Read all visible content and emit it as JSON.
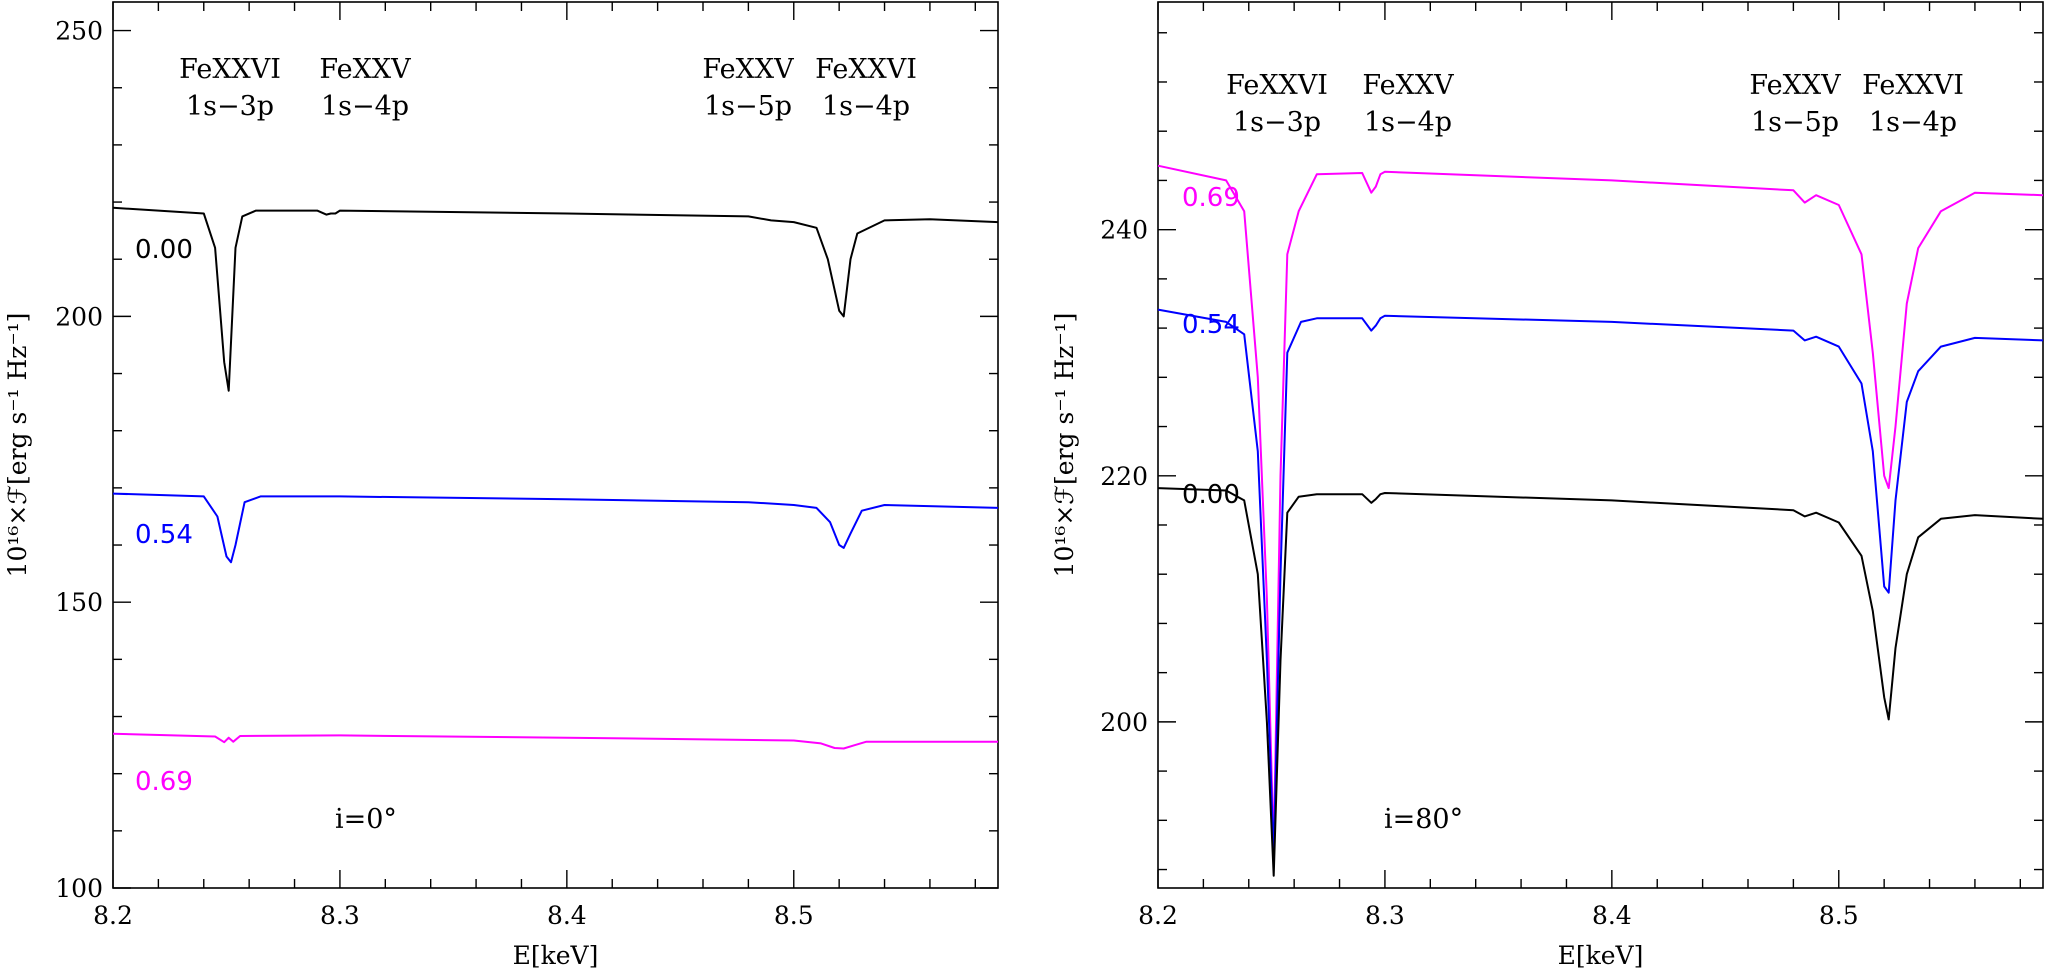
{
  "chart_data": [
    {
      "type": "line",
      "panel": "left",
      "xlabel": "E[keV]",
      "ylabel": "10¹⁶×ℱ[erg s⁻¹ Hz⁻¹]",
      "xlim": [
        8.2,
        8.59
      ],
      "ylim": [
        100,
        255
      ],
      "xticks": [
        8.2,
        8.3,
        8.4,
        8.5
      ],
      "xtick_labels": [
        "8.2",
        "8.3",
        "8.4",
        "8.5"
      ],
      "yticks": [
        100,
        150,
        200,
        250
      ],
      "ytick_labels": [
        "100",
        "150",
        "200",
        "250"
      ],
      "inclination_label": "i=0°",
      "line_labels": [
        {
          "ion": "FeXXVI",
          "transition": "1s−3p",
          "energy": 8.251
        },
        {
          "ion": "FeXXV",
          "transition": "1s−4p",
          "energy": 8.295
        },
        {
          "ion": "FeXXV",
          "transition": "1s−5p",
          "energy": 8.487
        },
        {
          "ion": "FeXXVI",
          "transition": "1s−4p",
          "energy": 8.521
        }
      ],
      "series": [
        {
          "name": "0.00",
          "color": "#000000",
          "x": [
            8.2,
            8.24,
            8.245,
            8.249,
            8.251,
            8.254,
            8.257,
            8.263,
            8.29,
            8.294,
            8.296,
            8.298,
            8.3,
            8.4,
            8.48,
            8.49,
            8.5,
            8.51,
            8.515,
            8.52,
            8.522,
            8.525,
            8.528,
            8.54,
            8.56,
            8.59
          ],
          "y": [
            219,
            218,
            212,
            192,
            187,
            212,
            217.5,
            218.5,
            218.5,
            217.8,
            218,
            218,
            218.5,
            218,
            217.5,
            216.8,
            216.5,
            215.5,
            210,
            201,
            200,
            210,
            214.5,
            216.8,
            217,
            216.5
          ]
        },
        {
          "name": "0.54",
          "color": "#0000ff",
          "x": [
            8.2,
            8.24,
            8.246,
            8.25,
            8.252,
            8.254,
            8.258,
            8.265,
            8.3,
            8.4,
            8.48,
            8.5,
            8.51,
            8.516,
            8.52,
            8.522,
            8.525,
            8.53,
            8.54,
            8.59
          ],
          "y": [
            169,
            168.5,
            165,
            158,
            157,
            160,
            167.5,
            168.5,
            168.5,
            168,
            167.5,
            167,
            166.5,
            164,
            160,
            159.5,
            162,
            166,
            167,
            166.5
          ]
        },
        {
          "name": "0.69",
          "color": "#ff00ff",
          "x": [
            8.2,
            8.245,
            8.249,
            8.251,
            8.253,
            8.256,
            8.3,
            8.4,
            8.5,
            8.512,
            8.518,
            8.522,
            8.527,
            8.532,
            8.59
          ],
          "y": [
            127,
            126.5,
            125.5,
            126.3,
            125.6,
            126.6,
            126.7,
            126.3,
            125.8,
            125.3,
            124.5,
            124.4,
            125,
            125.6,
            125.6
          ]
        }
      ]
    },
    {
      "type": "line",
      "panel": "right",
      "xlabel": "E[keV]",
      "ylabel": "10¹⁶×ℱ[erg s⁻¹ Hz⁻¹]",
      "xlim": [
        8.2,
        8.59
      ],
      "ylim": [
        186.5,
        258.5
      ],
      "xticks": [
        8.2,
        8.3,
        8.4,
        8.5
      ],
      "xtick_labels": [
        "8.2",
        "8.3",
        "8.4",
        "8.5"
      ],
      "yticks": [
        200,
        220,
        240
      ],
      "ytick_labels": [
        "200",
        "220",
        "240"
      ],
      "inclination_label": "i=80°",
      "line_labels": [
        {
          "ion": "FeXXVI",
          "transition": "1s−3p",
          "energy": 8.251
        },
        {
          "ion": "FeXXV",
          "transition": "1s−4p",
          "energy": 8.295
        },
        {
          "ion": "FeXXV",
          "transition": "1s−5p",
          "energy": 8.487
        },
        {
          "ion": "FeXXVI",
          "transition": "1s−4p",
          "energy": 8.521
        }
      ],
      "series": [
        {
          "name": "0.69",
          "color": "#ff00ff",
          "x": [
            8.2,
            8.23,
            8.238,
            8.244,
            8.248,
            8.251,
            8.254,
            8.257,
            8.262,
            8.27,
            8.29,
            8.294,
            8.296,
            8.298,
            8.3,
            8.4,
            8.48,
            8.485,
            8.49,
            8.5,
            8.51,
            8.515,
            8.52,
            8.522,
            8.525,
            8.53,
            8.535,
            8.545,
            8.56,
            8.59
          ],
          "y": [
            245.2,
            244,
            241.5,
            228,
            210,
            189.5,
            220,
            238,
            241.5,
            244.5,
            244.6,
            243,
            243.5,
            244.5,
            244.7,
            244,
            243.2,
            242.2,
            242.8,
            242,
            238,
            230,
            220,
            219,
            224,
            234,
            238.5,
            241.5,
            243,
            242.8
          ]
        },
        {
          "name": "0.54",
          "color": "#0000ff",
          "x": [
            8.2,
            8.23,
            8.238,
            8.244,
            8.248,
            8.251,
            8.254,
            8.257,
            8.263,
            8.27,
            8.29,
            8.294,
            8.296,
            8.298,
            8.3,
            8.4,
            8.48,
            8.485,
            8.49,
            8.5,
            8.51,
            8.515,
            8.52,
            8.522,
            8.525,
            8.53,
            8.535,
            8.545,
            8.56,
            8.59
          ],
          "y": [
            233.5,
            232.5,
            231.5,
            222,
            205,
            189,
            212,
            230,
            232.5,
            232.8,
            232.8,
            231.8,
            232.2,
            232.8,
            233,
            232.5,
            231.8,
            231,
            231.3,
            230.5,
            227.5,
            222,
            211,
            210.5,
            218,
            226,
            228.5,
            230.5,
            231.2,
            231
          ]
        },
        {
          "name": "0.00",
          "color": "#000000",
          "x": [
            8.2,
            8.23,
            8.238,
            8.244,
            8.248,
            8.251,
            8.254,
            8.257,
            8.262,
            8.27,
            8.29,
            8.294,
            8.296,
            8.298,
            8.3,
            8.4,
            8.48,
            8.485,
            8.49,
            8.5,
            8.51,
            8.515,
            8.52,
            8.522,
            8.525,
            8.53,
            8.535,
            8.545,
            8.56,
            8.59
          ],
          "y": [
            219,
            218.8,
            218,
            212,
            200,
            187.5,
            205,
            217,
            218.3,
            218.5,
            218.5,
            217.8,
            218.1,
            218.5,
            218.6,
            218,
            217.2,
            216.7,
            217,
            216.2,
            213.5,
            209,
            202,
            200.2,
            206,
            212,
            215,
            216.5,
            216.8,
            216.5
          ]
        }
      ]
    }
  ]
}
